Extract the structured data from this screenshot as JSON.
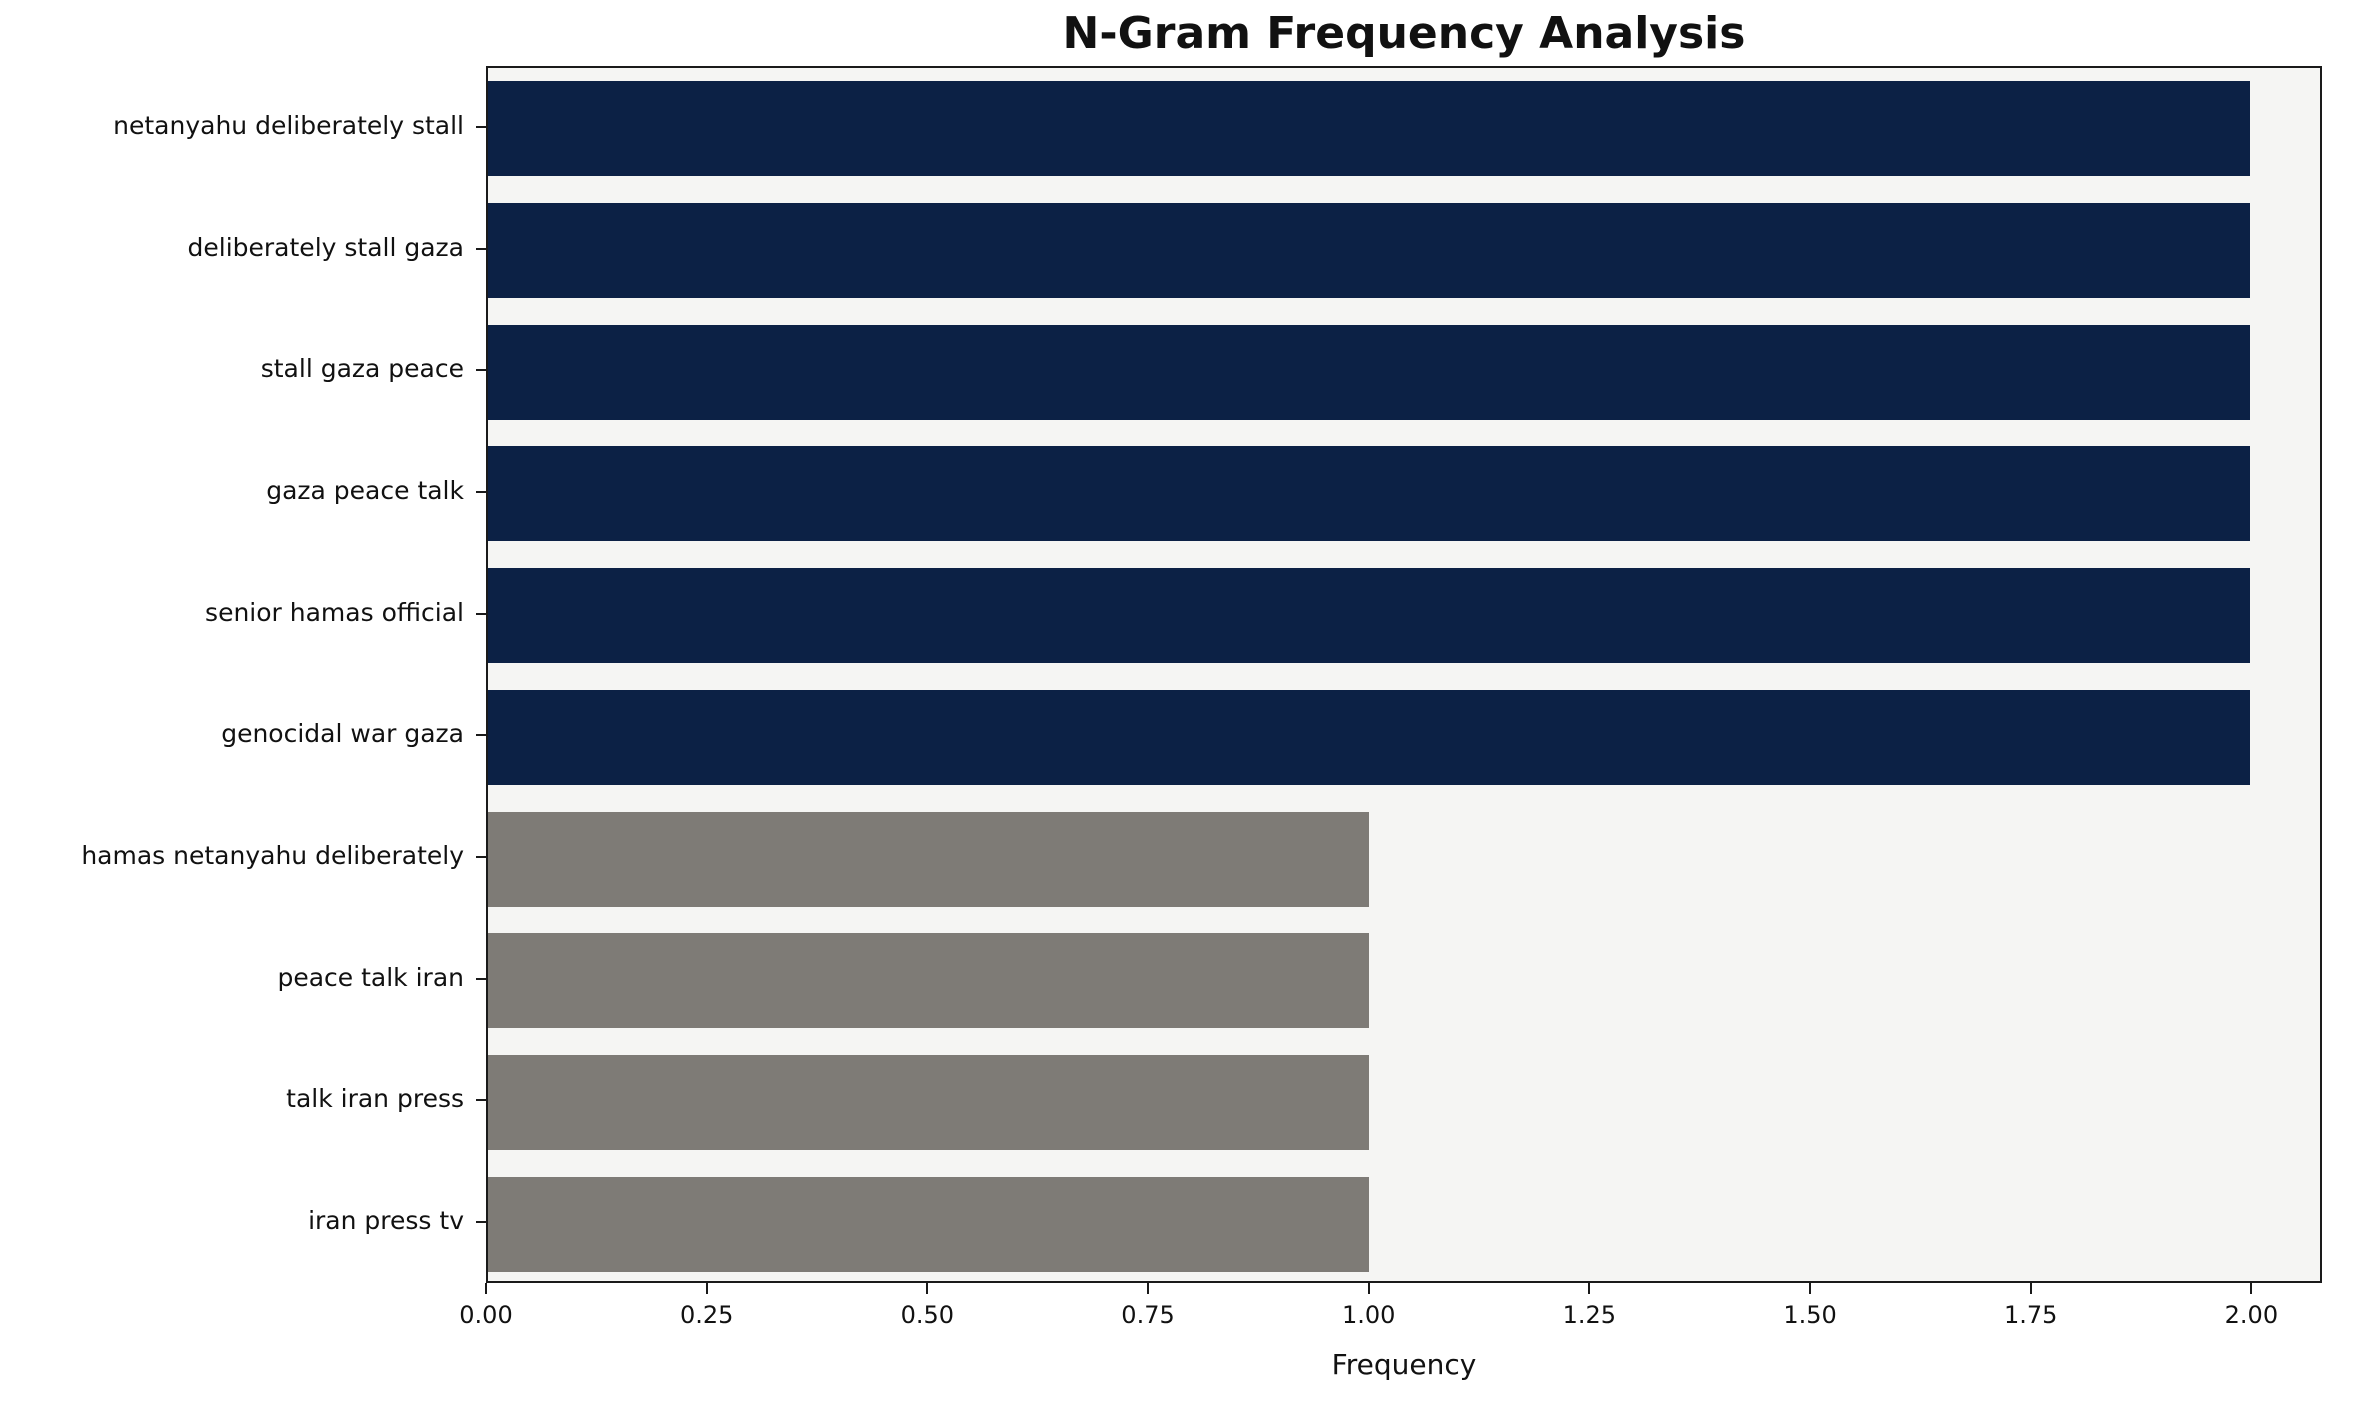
{
  "chart_data": {
    "type": "bar",
    "orientation": "horizontal",
    "title": "N-Gram Frequency Analysis",
    "xlabel": "Frequency",
    "ylabel": "",
    "categories": [
      "netanyahu deliberately stall",
      "deliberately stall gaza",
      "stall gaza peace",
      "gaza peace talk",
      "senior hamas official",
      "genocidal war gaza",
      "hamas netanyahu deliberately",
      "peace talk iran",
      "talk iran press",
      "iran press tv"
    ],
    "values": [
      2,
      2,
      2,
      2,
      2,
      2,
      1,
      1,
      1,
      1
    ],
    "bar_colors": [
      "#0c2145",
      "#0c2145",
      "#0c2145",
      "#0c2145",
      "#0c2145",
      "#0c2145",
      "#7e7b76",
      "#7e7b76",
      "#7e7b76",
      "#7e7b76"
    ],
    "xlim": [
      0,
      2.08
    ],
    "xticks": [
      {
        "value": 0.0,
        "label": "0.00"
      },
      {
        "value": 0.25,
        "label": "0.25"
      },
      {
        "value": 0.5,
        "label": "0.50"
      },
      {
        "value": 0.75,
        "label": "0.75"
      },
      {
        "value": 1.0,
        "label": "1.00"
      },
      {
        "value": 1.25,
        "label": "1.25"
      },
      {
        "value": 1.5,
        "label": "1.50"
      },
      {
        "value": 1.75,
        "label": "1.75"
      },
      {
        "value": 2.0,
        "label": "2.00"
      }
    ],
    "grid": false,
    "legend": "none",
    "plot_bg": "#f5f5f3",
    "figure_bg": "#ffffff",
    "bar_fraction_of_row": 0.78
  }
}
